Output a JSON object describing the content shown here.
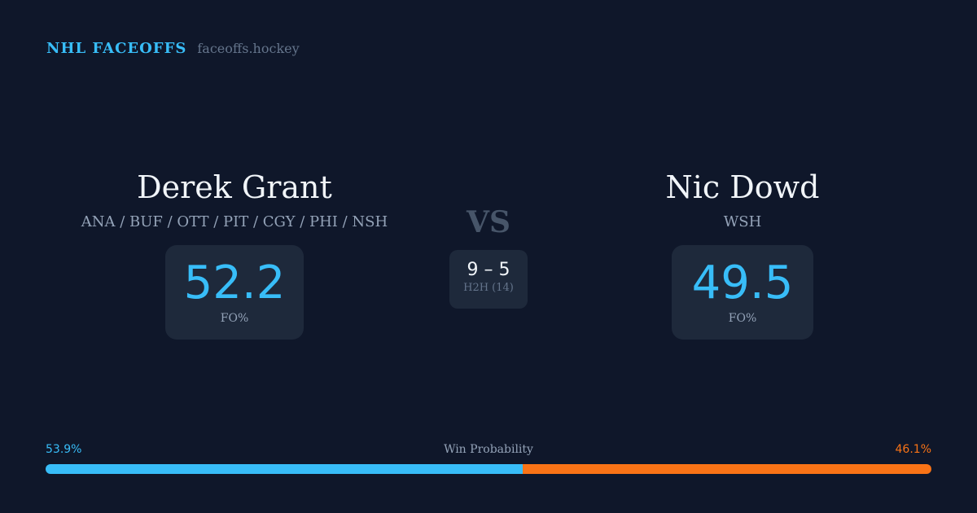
{
  "brand": {
    "name": "NHL FACEOFFS",
    "site": "faceoffs.hockey"
  },
  "left": {
    "name": "Derek Grant",
    "teams": "ANA / BUF / OTT / PIT / CGY / PHI / NSH",
    "fo_pct": "52.2",
    "fo_label": "FO%"
  },
  "right": {
    "name": "Nic Dowd",
    "teams": "WSH",
    "fo_pct": "49.5",
    "fo_label": "FO%"
  },
  "vs": "VS",
  "h2h": {
    "score": "9 – 5",
    "label": "H2H (14)"
  },
  "win_probability": {
    "label": "Win Probability",
    "left_text": "53.9%",
    "right_text": "46.1%",
    "left": 53.9,
    "right": 46.1
  },
  "colors": {
    "left": "#38bdf8",
    "right": "#f97316",
    "background": "#0f172a"
  }
}
